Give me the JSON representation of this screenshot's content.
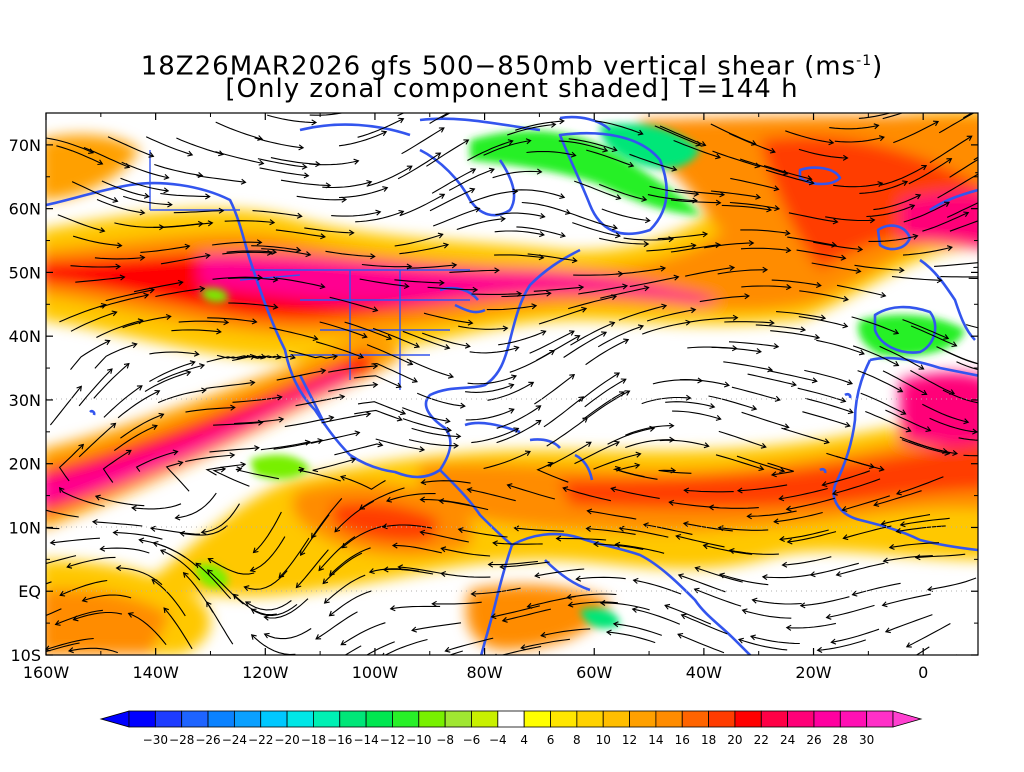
{
  "title": {
    "line1_main": "18Z26MAR2026 gfs 500−850mb vertical shear (ms",
    "line1_sup": "-1",
    "line1_end": ")",
    "line2": "[Only zonal component shaded] T=144 h"
  },
  "map": {
    "lon_labels": [
      "160W",
      "140W",
      "120W",
      "100W",
      "80W",
      "60W",
      "40W",
      "20W",
      "0"
    ],
    "lat_labels": [
      "70N",
      "60N",
      "50N",
      "40N",
      "30N",
      "20N",
      "10N",
      "EQ",
      "10S"
    ],
    "lon_values": [
      -160,
      -140,
      -120,
      -100,
      -80,
      -60,
      -40,
      -20,
      0
    ],
    "lat_values": [
      70,
      60,
      50,
      40,
      30,
      20,
      10,
      0,
      -10
    ],
    "lon_range": [
      -160,
      10
    ],
    "lat_range": [
      -10,
      75
    ],
    "coastline_color": "#3355ee",
    "streamline_color": "#000000"
  },
  "colorbar": {
    "labels": [
      "-30",
      "-28",
      "-26",
      "-24",
      "-22",
      "-20",
      "-18",
      "-16",
      "-14",
      "-12",
      "-10",
      "-8",
      "-6",
      "-4",
      "4",
      "6",
      "8",
      "10",
      "12",
      "14",
      "16",
      "18",
      "20",
      "22",
      "24",
      "26",
      "28",
      "30"
    ],
    "colors": [
      "#0000ff",
      "#1e3cff",
      "#1e64ff",
      "#0a82ff",
      "#0aa0ff",
      "#00c8ff",
      "#00e6e6",
      "#00f0b4",
      "#00e678",
      "#00e650",
      "#28f028",
      "#78f000",
      "#a0e632",
      "#c8f000",
      "#ffffff",
      "#ffff00",
      "#ffe600",
      "#ffd200",
      "#ffbe00",
      "#ffa000",
      "#ff8c00",
      "#ff6400",
      "#ff3c00",
      "#ff0000",
      "#ff0046",
      "#ff0078",
      "#ff00a0",
      "#ff10b4",
      "#ff30c8"
    ],
    "low_arrow_color": "#0000ff",
    "high_arrow_color": "#ff40d0"
  }
}
